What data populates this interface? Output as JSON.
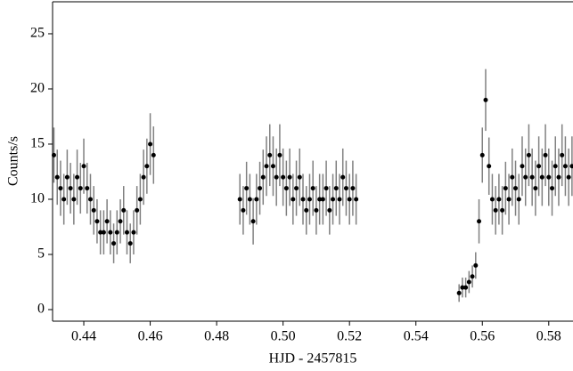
{
  "chart_data": {
    "type": "scatter",
    "x_label": "HJD - 2457815",
    "y_label": "Counts/s",
    "xlim": [
      0.4306,
      0.5873
    ],
    "ylim": [
      -1.05,
      27.9
    ],
    "xticks": [
      0.44,
      0.46,
      0.48,
      {
        "value": 0.5,
        "label": "0.50"
      },
      0.52,
      0.54,
      0.56,
      0.58
    ],
    "yticks": [
      0,
      5,
      10,
      15,
      20,
      25
    ],
    "color": "#000000",
    "error_color": "#808080",
    "x": [
      0.431,
      0.432,
      0.433,
      0.434,
      0.435,
      0.436,
      0.437,
      0.438,
      0.439,
      0.44,
      0.441,
      0.442,
      0.443,
      0.444,
      0.445,
      0.446,
      0.447,
      0.448,
      0.449,
      0.45,
      0.451,
      0.452,
      0.453,
      0.454,
      0.455,
      0.456,
      0.457,
      0.458,
      0.459,
      0.46,
      0.461,
      0.487,
      0.488,
      0.489,
      0.49,
      0.491,
      0.492,
      0.493,
      0.494,
      0.495,
      0.496,
      0.497,
      0.498,
      0.499,
      0.5,
      0.501,
      0.502,
      0.503,
      0.504,
      0.505,
      0.506,
      0.507,
      0.508,
      0.509,
      0.51,
      0.511,
      0.512,
      0.513,
      0.514,
      0.515,
      0.516,
      0.517,
      0.518,
      0.519,
      0.52,
      0.521,
      0.522,
      0.553,
      0.554,
      0.555,
      0.556,
      0.557,
      0.558,
      0.559,
      0.56,
      0.561,
      0.562,
      0.563,
      0.564,
      0.565,
      0.566,
      0.567,
      0.568,
      0.569,
      0.57,
      0.571,
      0.572,
      0.573,
      0.574,
      0.575,
      0.576,
      0.577,
      0.578,
      0.579,
      0.58,
      0.581,
      0.582,
      0.583,
      0.584,
      0.585,
      0.586,
      0.587
    ],
    "values": [
      14,
      12,
      11,
      10,
      12,
      11,
      10,
      12,
      11,
      13,
      11,
      10,
      9,
      8,
      7,
      7,
      8,
      7,
      6,
      7,
      8,
      9,
      7,
      6,
      7,
      9,
      10,
      12,
      13,
      15,
      14,
      10,
      9,
      11,
      10,
      8,
      10,
      11,
      12,
      13,
      14,
      13,
      12,
      14,
      12,
      11,
      12,
      10,
      11,
      12,
      10,
      9,
      10,
      11,
      9,
      10,
      10,
      11,
      9,
      10,
      11,
      10,
      12,
      11,
      10,
      11,
      10,
      1.5,
      2,
      2,
      2.5,
      3,
      4,
      8,
      14,
      19,
      13,
      10,
      9,
      10,
      9,
      11,
      10,
      12,
      11,
      10,
      13,
      12,
      14,
      12,
      11,
      13,
      12,
      14,
      12,
      11,
      13,
      12,
      14,
      13,
      12,
      13
    ],
    "errors": [
      2.5,
      2.5,
      2.5,
      2.3,
      2.5,
      2.3,
      2.3,
      2.5,
      2.3,
      2.5,
      2.3,
      2.3,
      2.2,
      2,
      2,
      2,
      2,
      2,
      1.8,
      2,
      2,
      2.2,
      2,
      1.8,
      2,
      2.2,
      2.3,
      2.5,
      2.5,
      2.8,
      2.6,
      2.3,
      2.2,
      2.4,
      2.3,
      2.1,
      2.3,
      2.4,
      2.5,
      2.7,
      2.8,
      2.7,
      2.6,
      2.8,
      2.6,
      2.5,
      2.6,
      2.3,
      2.5,
      2.6,
      2.3,
      2.2,
      2.3,
      2.5,
      2.2,
      2.3,
      2.3,
      2.5,
      2.2,
      2.3,
      2.5,
      2.3,
      2.6,
      2.5,
      2.3,
      2.5,
      2.3,
      0.8,
      0.9,
      0.9,
      1,
      1,
      1.2,
      2,
      2.5,
      2.8,
      2.6,
      2.3,
      2.2,
      2.3,
      2.2,
      2.4,
      2.3,
      2.6,
      2.5,
      2.3,
      2.7,
      2.6,
      2.8,
      2.6,
      2.5,
      2.7,
      2.6,
      2.8,
      2.6,
      2.5,
      2.7,
      2.6,
      2.8,
      2.7,
      2.6,
      2.7
    ]
  }
}
